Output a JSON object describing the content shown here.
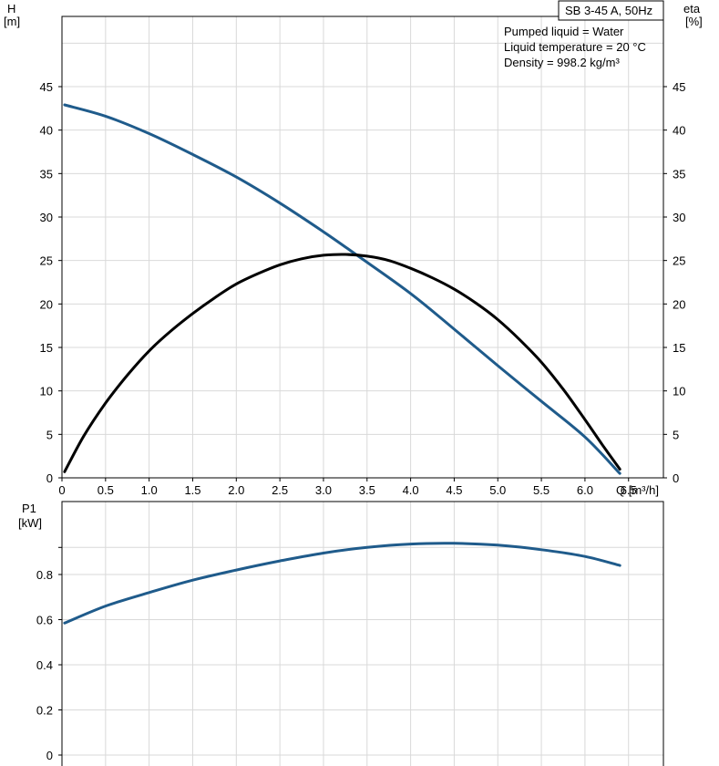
{
  "chart_data": [
    {
      "type": "line",
      "title": "SB 3-45 A, 50Hz",
      "info_lines": [
        "Pumped liquid = Water",
        "Liquid temperature = 20 °C",
        "Density = 998.2 kg/m³"
      ],
      "xlabel": "Q [m³/h]",
      "ylabel_left": [
        "H",
        "[m]"
      ],
      "ylabel_right": [
        "eta",
        "[%]"
      ],
      "xlim": [
        0,
        6.9
      ],
      "ylim": [
        0,
        50
      ],
      "x_ticks": [
        "0",
        "0.5",
        "1.0",
        "1.5",
        "2.0",
        "2.5",
        "3.0",
        "3.5",
        "4.0",
        "4.5",
        "5.0",
        "5.5",
        "6.0",
        "6.5"
      ],
      "y_ticks": [
        "0",
        "5",
        "10",
        "15",
        "20",
        "25",
        "30",
        "35",
        "40",
        "45"
      ],
      "grid": true,
      "series": [
        {
          "name": "",
          "color": "#1f5b8b",
          "x": [
            0.03,
            0.5,
            1.0,
            1.5,
            2.0,
            2.5,
            3.0,
            3.4,
            4.0,
            4.5,
            5.0,
            5.5,
            6.0,
            6.4
          ],
          "y": [
            42.9,
            41.6,
            39.6,
            37.2,
            34.6,
            31.6,
            28.3,
            25.5,
            21.2,
            17.1,
            12.9,
            8.8,
            4.7,
            0.5
          ]
        },
        {
          "name": "",
          "color": "#000000",
          "x": [
            0.03,
            0.25,
            0.5,
            0.75,
            1.0,
            1.25,
            1.5,
            1.75,
            2.0,
            2.25,
            2.5,
            2.75,
            3.0,
            3.25,
            3.5,
            3.75,
            4.0,
            4.25,
            4.5,
            4.75,
            5.0,
            5.25,
            5.5,
            5.75,
            6.0,
            6.2,
            6.4
          ],
          "y": [
            0.7,
            4.8,
            8.6,
            11.8,
            14.6,
            16.9,
            18.9,
            20.7,
            22.3,
            23.5,
            24.5,
            25.2,
            25.6,
            25.7,
            25.5,
            25.0,
            24.1,
            23.0,
            21.7,
            20.1,
            18.2,
            15.9,
            13.3,
            10.2,
            6.7,
            3.8,
            1.0
          ]
        }
      ]
    },
    {
      "type": "line",
      "xlim": [
        0,
        6.9
      ],
      "ylim": [
        0,
        1.0
      ],
      "ylabel_left": [
        "P1",
        "[kW]"
      ],
      "y_ticks": [
        "0",
        "0.2",
        "0.4",
        "0.6",
        "0.8"
      ],
      "grid": true,
      "series": [
        {
          "name": "",
          "color": "#1f5b8b",
          "x": [
            0.03,
            0.5,
            1.0,
            1.5,
            2.0,
            2.5,
            3.0,
            3.5,
            4.0,
            4.5,
            5.0,
            5.5,
            6.0,
            6.4
          ],
          "y": [
            0.585,
            0.66,
            0.72,
            0.775,
            0.82,
            0.86,
            0.895,
            0.92,
            0.935,
            0.938,
            0.93,
            0.91,
            0.88,
            0.84
          ]
        }
      ]
    }
  ]
}
